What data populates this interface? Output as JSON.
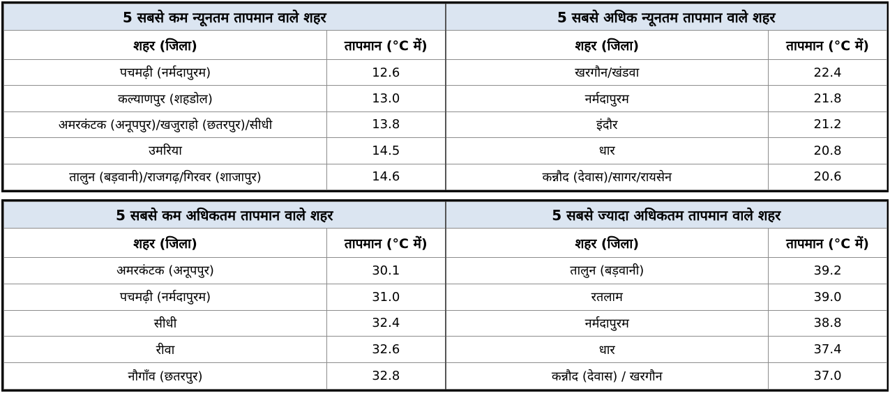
{
  "headers": {
    "city": "शहर (जिला)",
    "temperature": "तापमान (°C में)"
  },
  "tables": [
    {
      "title": "5 सबसे कम न्यूनतम तापमान वाले शहर",
      "rows": [
        {
          "city": "पचमढ़ी (नर्मदापुरम)",
          "temp": "12.6"
        },
        {
          "city": "कल्याणपुर (शहडोल)",
          "temp": "13.0"
        },
        {
          "city": "अमरकंटक (अनूपपुर)/खजुराहो (छतरपुर)/सीधी",
          "temp": "13.8"
        },
        {
          "city": "उमरिया",
          "temp": "14.5"
        },
        {
          "city": "तालुन (बड़वानी)/राजगढ़/गिरवर (शाजापुर)",
          "temp": "14.6"
        }
      ]
    },
    {
      "title": "5 सबसे अधिक न्यूनतम तापमान वाले शहर",
      "rows": [
        {
          "city": "खरगौन/खंडवा",
          "temp": "22.4"
        },
        {
          "city": "नर्मदापुरम",
          "temp": "21.8"
        },
        {
          "city": "इंदौर",
          "temp": "21.2"
        },
        {
          "city": "धार",
          "temp": "20.8"
        },
        {
          "city": "कन्नौद (देवास)/सागर/रायसेन",
          "temp": "20.6"
        }
      ]
    },
    {
      "title": "5 सबसे कम अधिकतम तापमान वाले शहर",
      "rows": [
        {
          "city": "अमरकंटक (अनूपपुर)",
          "temp": "30.1"
        },
        {
          "city": "पचमढ़ी (नर्मदापुरम)",
          "temp": "31.0"
        },
        {
          "city": "सीधी",
          "temp": "32.4"
        },
        {
          "city": "रीवा",
          "temp": "32.6"
        },
        {
          "city": "नौगाँव (छतरपुर)",
          "temp": "32.8"
        }
      ]
    },
    {
      "title": "5 सबसे ज्यादा अधिकतम तापमान वाले शहर",
      "rows": [
        {
          "city": "तालुन (बड़वानी)",
          "temp": "39.2"
        },
        {
          "city": "रतलाम",
          "temp": "39.0"
        },
        {
          "city": "नर्मदापुरम",
          "temp": "38.8"
        },
        {
          "city": "धार",
          "temp": "37.4"
        },
        {
          "city": "कन्नौद (देवास) / खरगौन",
          "temp": "37.0"
        }
      ]
    }
  ],
  "colors": {
    "title_text": "#1f1fd6",
    "title_background": "#dbe5f1",
    "border": "#000000"
  }
}
